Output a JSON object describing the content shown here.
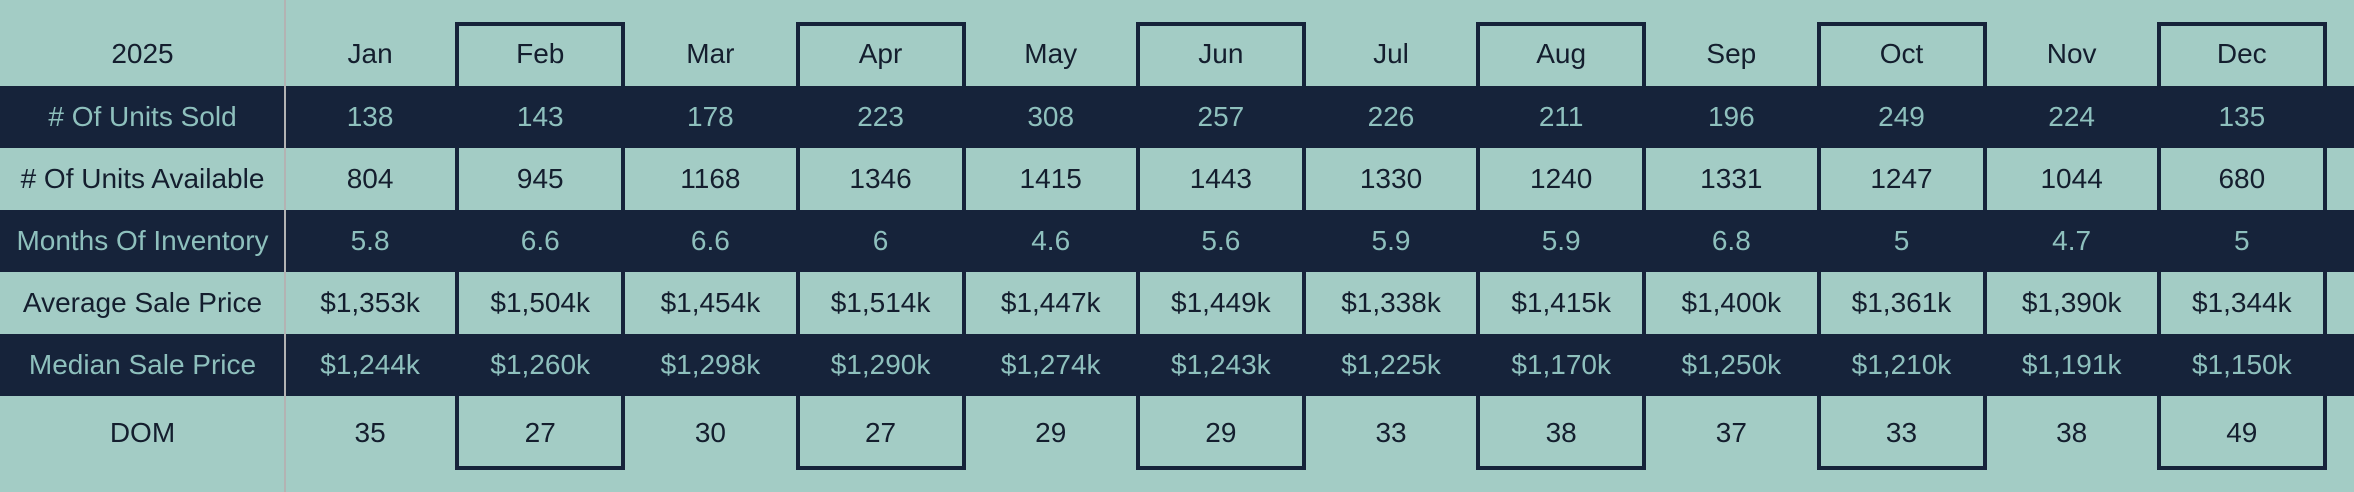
{
  "table": {
    "year_label": "2025",
    "months": [
      "Jan",
      "Feb",
      "Mar",
      "Apr",
      "May",
      "Jun",
      "Jul",
      "Aug",
      "Sep",
      "Oct",
      "Nov",
      "Dec"
    ],
    "boxed_month_indexes": [
      1,
      3,
      5,
      7,
      9,
      11
    ],
    "rows": [
      {
        "id": "units-sold",
        "label": "# Of Units Sold",
        "theme": "dark",
        "values": [
          "138",
          "143",
          "178",
          "223",
          "308",
          "257",
          "226",
          "211",
          "196",
          "249",
          "224",
          "135"
        ]
      },
      {
        "id": "units-available",
        "label": "# Of Units Available",
        "theme": "light",
        "values": [
          "804",
          "945",
          "1168",
          "1346",
          "1415",
          "1443",
          "1330",
          "1240",
          "1331",
          "1247",
          "1044",
          "680"
        ]
      },
      {
        "id": "months-of-inventory",
        "label": "Months Of Inventory",
        "theme": "dark",
        "values": [
          "5.8",
          "6.6",
          "6.6",
          "6",
          "4.6",
          "5.6",
          "5.9",
          "5.9",
          "6.8",
          "5",
          "4.7",
          "5"
        ]
      },
      {
        "id": "average-sale-price",
        "label": "Average Sale Price",
        "theme": "light",
        "values": [
          "$1,353k",
          "$1,504k",
          "$1,454k",
          "$1,514k",
          "$1,447k",
          "$1,449k",
          "$1,338k",
          "$1,415k",
          "$1,400k",
          "$1,361k",
          "$1,390k",
          "$1,344k"
        ]
      },
      {
        "id": "median-sale-price",
        "label": "Median Sale Price",
        "theme": "dark",
        "values": [
          "$1,244k",
          "$1,260k",
          "$1,298k",
          "$1,290k",
          "$1,274k",
          "$1,243k",
          "$1,225k",
          "$1,170k",
          "$1,250k",
          "$1,210k",
          "$1,191k",
          "$1,150k"
        ]
      },
      {
        "id": "dom",
        "label": "DOM",
        "theme": "light",
        "values": [
          "35",
          "27",
          "30",
          "27",
          "29",
          "29",
          "33",
          "38",
          "37",
          "33",
          "38",
          "49"
        ]
      }
    ]
  },
  "chart_data": {
    "type": "table",
    "title": "2025",
    "categories": [
      "Jan",
      "Feb",
      "Mar",
      "Apr",
      "May",
      "Jun",
      "Jul",
      "Aug",
      "Sep",
      "Oct",
      "Nov",
      "Dec"
    ],
    "series": [
      {
        "name": "# Of Units Sold",
        "values": [
          138,
          143,
          178,
          223,
          308,
          257,
          226,
          211,
          196,
          249,
          224,
          135
        ]
      },
      {
        "name": "# Of Units Available",
        "values": [
          804,
          945,
          1168,
          1346,
          1415,
          1443,
          1330,
          1240,
          1331,
          1247,
          1044,
          680
        ]
      },
      {
        "name": "Months Of Inventory",
        "values": [
          5.8,
          6.6,
          6.6,
          6,
          4.6,
          5.6,
          5.9,
          5.9,
          6.8,
          5,
          4.7,
          5
        ]
      },
      {
        "name": "Average Sale Price ($k)",
        "values": [
          1353,
          1504,
          1454,
          1514,
          1447,
          1449,
          1338,
          1415,
          1400,
          1361,
          1390,
          1344
        ]
      },
      {
        "name": "Median Sale Price ($k)",
        "values": [
          1244,
          1260,
          1298,
          1290,
          1274,
          1243,
          1225,
          1170,
          1250,
          1210,
          1191,
          1150
        ]
      },
      {
        "name": "DOM",
        "values": [
          35,
          27,
          30,
          27,
          29,
          29,
          33,
          38,
          37,
          33,
          38,
          49
        ]
      }
    ],
    "layout": {
      "row_band_colors": [
        "navy",
        "teal"
      ],
      "highlighted_columns": [
        "Feb",
        "Apr",
        "Jun",
        "Aug",
        "Oct",
        "Dec"
      ]
    }
  },
  "colors": {
    "teal_background": "#a3ccc5",
    "navy_band": "#16233a",
    "teal_text_on_navy": "#8ec0bd",
    "dark_text_on_teal": "#141e2e",
    "divider_gray": "#b3b3b3"
  }
}
